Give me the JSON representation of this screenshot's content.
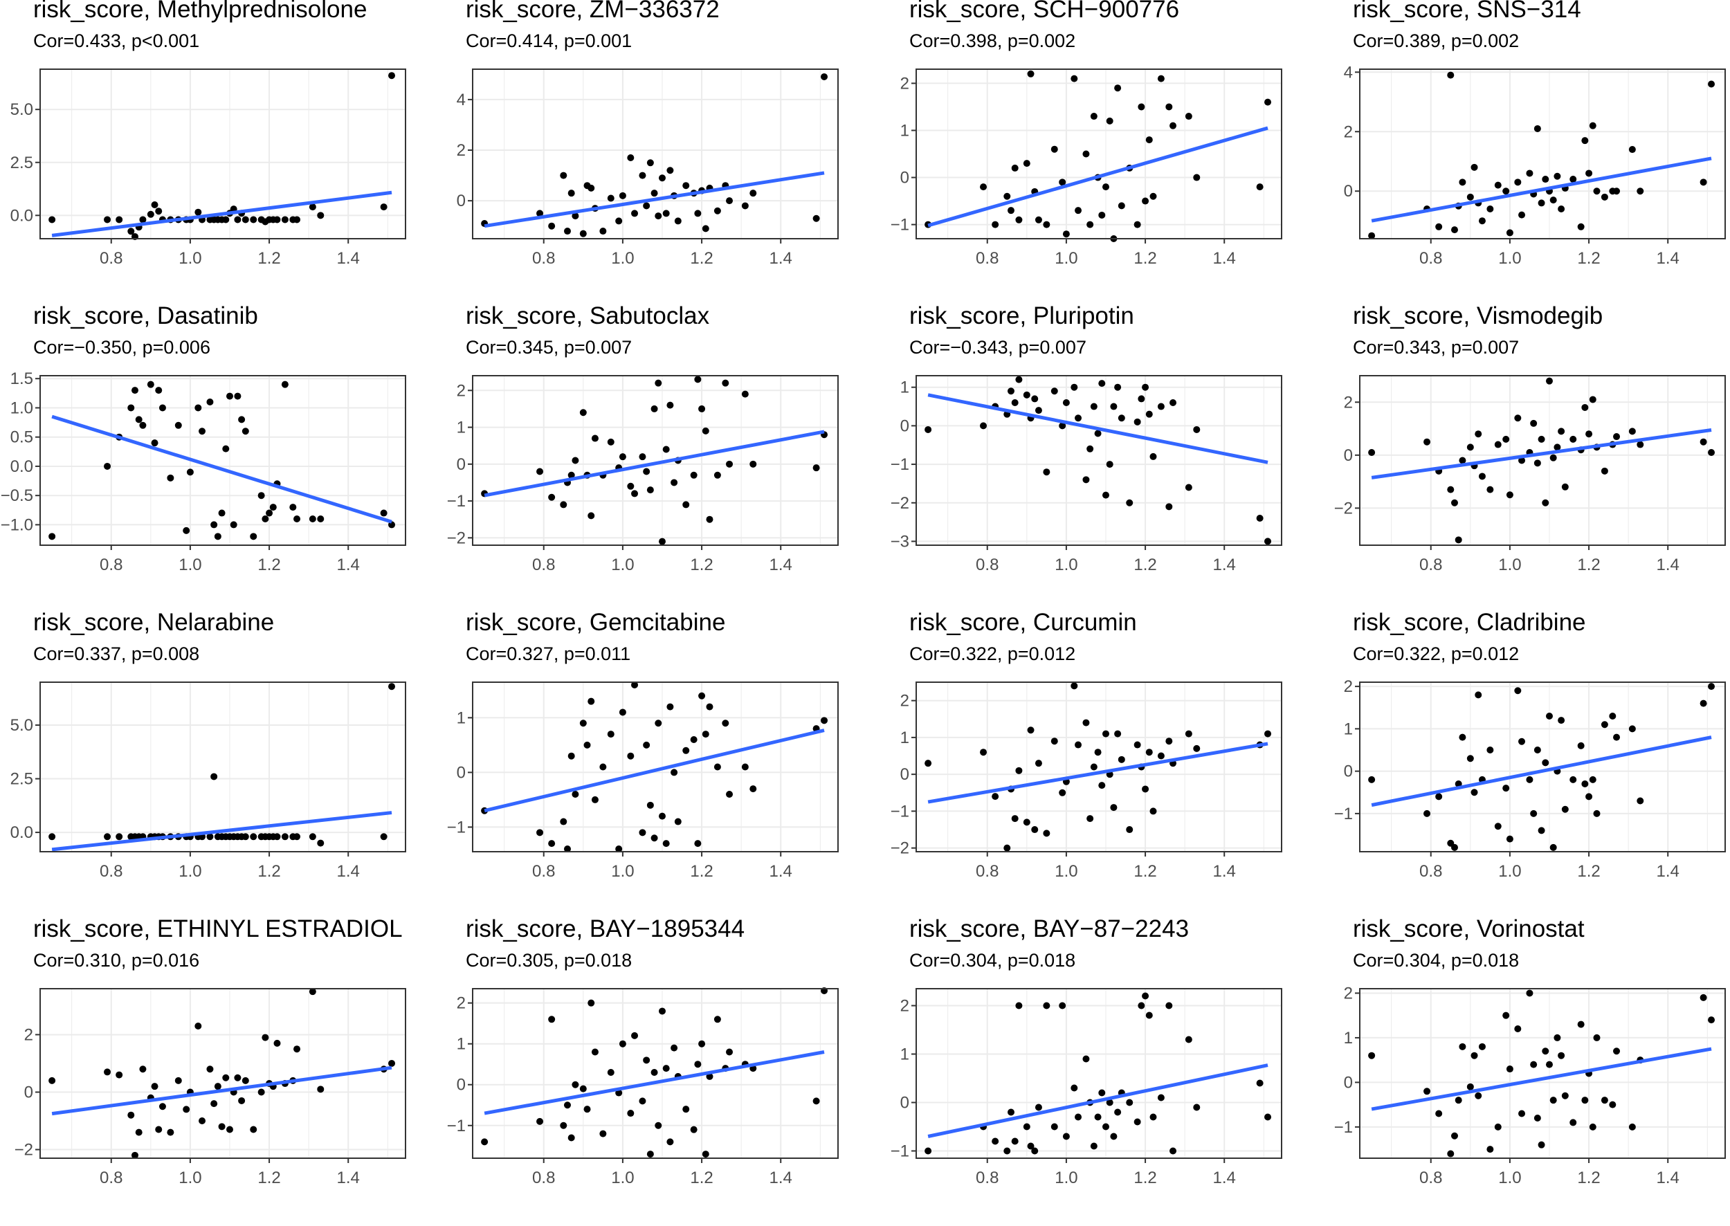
{
  "chart_data": [
    {
      "type": "scatter",
      "title": "risk_score, Methylprednisolone",
      "subtitle": "Cor=0.433, p<0.001",
      "ylim": [
        -1.1,
        6.9
      ],
      "yticks": [
        0,
        2.5,
        5
      ],
      "ytick_labels": [
        "0.0",
        "2.5",
        "5.0"
      ],
      "fit": [
        -0.95,
        1.08
      ],
      "y": [
        -0.2,
        -0.2,
        -0.2,
        -0.75,
        -1.0,
        -0.55,
        -0.2,
        0.05,
        0.5,
        0.2,
        -0.2,
        -0.2,
        -0.2,
        -0.2,
        -0.2,
        0.15,
        -0.2,
        -0.2,
        -0.2,
        -0.2,
        -0.2,
        -0.2,
        0.1,
        0.3,
        -0.2,
        0.1,
        -0.2,
        -0.2,
        -0.2,
        -0.3,
        -0.2,
        -0.2,
        -0.2,
        -0.2,
        -0.2,
        -0.2,
        0.4,
        0.0,
        0.4,
        6.6
      ]
    },
    {
      "type": "scatter",
      "title": "risk_score, ZM−336372",
      "subtitle": "Cor=0.414, p=0.001",
      "ylim": [
        -1.5,
        5.2
      ],
      "yticks": [
        0,
        2,
        4
      ],
      "ytick_labels": [
        "0",
        "2",
        "4"
      ],
      "fit": [
        -1.0,
        1.1
      ],
      "y": [
        -0.9,
        -0.5,
        -1.0,
        1.0,
        -1.2,
        0.3,
        -0.6,
        -1.3,
        0.6,
        0.5,
        -0.3,
        -1.2,
        0.1,
        -0.8,
        0.2,
        1.7,
        -0.5,
        1.0,
        -0.2,
        1.5,
        0.3,
        -0.6,
        0.9,
        -0.5,
        1.2,
        0.2,
        -0.8,
        0.6,
        0.3,
        -0.5,
        0.4,
        -1.1,
        0.5,
        -0.4,
        0.6,
        0.0,
        -0.2,
        0.3,
        -0.7,
        4.9
      ]
    },
    {
      "type": "scatter",
      "title": "risk_score, SCH−900776",
      "subtitle": "Cor=0.398, p=0.002",
      "ylim": [
        -1.3,
        2.3
      ],
      "yticks": [
        -1,
        0,
        1,
        2
      ],
      "ytick_labels": [
        "−1",
        "0",
        "1",
        "2"
      ],
      "fit": [
        -1.02,
        1.05
      ],
      "y": [
        -1.0,
        -0.2,
        -1.0,
        -0.4,
        -0.7,
        0.2,
        -0.9,
        0.3,
        2.2,
        -0.3,
        -0.9,
        -1.0,
        0.6,
        -0.1,
        -1.2,
        2.1,
        -0.7,
        0.5,
        -1.0,
        1.3,
        0.0,
        -0.8,
        -0.2,
        1.2,
        -1.3,
        1.9,
        -0.6,
        0.2,
        -1.0,
        1.5,
        -0.5,
        0.8,
        -0.4,
        2.1,
        1.5,
        1.1,
        1.3,
        0.0,
        -0.2,
        1.6
      ]
    },
    {
      "type": "scatter",
      "title": "risk_score, SNS−314",
      "subtitle": "Cor=0.389, p=0.002",
      "ylim": [
        -1.6,
        4.1
      ],
      "yticks": [
        0,
        2,
        4
      ],
      "ytick_labels": [
        "0",
        "2",
        "4"
      ],
      "fit": [
        -1.0,
        1.1
      ],
      "y": [
        -1.5,
        -0.6,
        -1.2,
        3.9,
        -1.3,
        -0.5,
        0.3,
        -0.2,
        0.8,
        -0.4,
        -1.0,
        -0.6,
        0.2,
        0.0,
        -1.4,
        0.3,
        -0.8,
        0.6,
        -0.1,
        2.1,
        -0.4,
        0.4,
        0.0,
        -0.3,
        0.5,
        -0.6,
        0.1,
        0.4,
        -1.2,
        1.7,
        0.6,
        2.2,
        0.0,
        -0.2,
        0.0,
        0.0,
        1.4,
        0.0,
        0.3,
        3.6
      ]
    },
    {
      "type": "scatter",
      "title": "risk_score, Dasatinib",
      "subtitle": "Cor=−0.350, p=0.006",
      "ylim": [
        -1.35,
        1.55
      ],
      "yticks": [
        -1,
        -0.5,
        0,
        0.5,
        1,
        1.5
      ],
      "ytick_labels": [
        "−1.0",
        "−0.5",
        "0.0",
        "0.5",
        "1.0",
        "1.5"
      ],
      "fit": [
        0.85,
        -0.95
      ],
      "y": [
        -1.2,
        0.0,
        0.5,
        1.0,
        1.3,
        0.8,
        0.7,
        1.4,
        0.4,
        1.3,
        1.0,
        -0.2,
        0.7,
        -1.1,
        -0.1,
        1.0,
        0.6,
        1.1,
        -1.0,
        -1.2,
        -0.8,
        0.3,
        1.2,
        -1.0,
        1.2,
        0.8,
        0.6,
        -1.2,
        -0.5,
        -0.9,
        -0.8,
        -0.7,
        -0.3,
        1.4,
        -0.7,
        -0.9,
        -0.9,
        -0.9,
        -0.8,
        -1.0
      ]
    },
    {
      "type": "scatter",
      "title": "risk_score, Sabutoclax",
      "subtitle": "Cor=0.345, p=0.007",
      "ylim": [
        -2.2,
        2.4
      ],
      "yticks": [
        -2,
        -1,
        0,
        1,
        2
      ],
      "ytick_labels": [
        "−2",
        "−1",
        "0",
        "1",
        "2"
      ],
      "fit": [
        -0.85,
        0.88
      ],
      "y": [
        -0.8,
        -0.2,
        -0.9,
        -1.1,
        -0.5,
        -0.3,
        0.1,
        1.4,
        -0.3,
        -1.4,
        0.7,
        -0.3,
        0.6,
        -0.1,
        0.2,
        -0.6,
        -0.8,
        0.2,
        -0.2,
        -0.7,
        1.5,
        2.2,
        -2.1,
        0.4,
        1.6,
        -0.5,
        0.1,
        -1.1,
        -0.3,
        2.3,
        1.5,
        0.9,
        -1.5,
        -0.3,
        2.2,
        0.0,
        1.9,
        0.0,
        -0.1,
        0.8
      ]
    },
    {
      "type": "scatter",
      "title": "risk_score, Pluripotin",
      "subtitle": "Cor=−0.343, p=0.007",
      "ylim": [
        -3.1,
        1.3
      ],
      "yticks": [
        -3,
        -2,
        -1,
        0,
        1
      ],
      "ytick_labels": [
        "−3",
        "−2",
        "−1",
        "0",
        "1"
      ],
      "fit": [
        0.8,
        -0.95
      ],
      "y": [
        -0.1,
        0.0,
        0.5,
        0.3,
        0.9,
        0.6,
        1.2,
        0.8,
        0.2,
        0.7,
        0.4,
        -1.2,
        0.9,
        0.0,
        0.6,
        1.0,
        0.2,
        -1.4,
        -0.6,
        0.5,
        -0.2,
        1.1,
        -1.8,
        -1.0,
        0.5,
        1.0,
        0.2,
        -2.0,
        0.1,
        0.7,
        1.0,
        0.3,
        -0.8,
        0.5,
        -2.1,
        0.6,
        -1.6,
        -0.1,
        -2.4,
        -3.0
      ]
    },
    {
      "type": "scatter",
      "title": "risk_score, Vismodegib",
      "subtitle": "Cor=0.343, p=0.007",
      "ylim": [
        -3.4,
        3.0
      ],
      "yticks": [
        -2,
        0,
        2
      ],
      "ytick_labels": [
        "−2",
        "0",
        "2"
      ],
      "fit": [
        -0.85,
        0.95
      ],
      "y": [
        0.1,
        0.5,
        -0.6,
        -1.3,
        -1.8,
        -3.2,
        -0.2,
        0.3,
        -0.4,
        0.8,
        -0.8,
        -1.3,
        0.4,
        0.6,
        -1.5,
        1.4,
        -0.2,
        0.1,
        1.2,
        -0.3,
        0.6,
        -1.8,
        2.8,
        -0.1,
        0.3,
        0.9,
        -1.2,
        0.6,
        0.2,
        1.8,
        0.8,
        2.1,
        0.3,
        -0.6,
        0.4,
        0.7,
        0.9,
        0.4,
        0.5,
        0.1
      ]
    },
    {
      "type": "scatter",
      "title": "risk_score, Nelarabine",
      "subtitle": "Cor=0.337, p=0.008",
      "ylim": [
        -0.9,
        7.0
      ],
      "yticks": [
        0,
        2.5,
        5
      ],
      "ytick_labels": [
        "0.0",
        "2.5",
        "5.0"
      ],
      "fit": [
        -0.8,
        0.92
      ],
      "y": [
        -0.2,
        -0.2,
        -0.2,
        -0.2,
        -0.2,
        -0.2,
        -0.2,
        -0.2,
        -0.2,
        -0.2,
        -0.2,
        -0.2,
        -0.2,
        -0.2,
        -0.2,
        -0.2,
        -0.2,
        -0.2,
        2.6,
        -0.2,
        -0.2,
        -0.2,
        -0.2,
        -0.2,
        -0.2,
        -0.2,
        -0.2,
        -0.2,
        -0.2,
        -0.2,
        -0.2,
        -0.2,
        -0.2,
        -0.2,
        -0.2,
        -0.2,
        -0.2,
        -0.5,
        -0.2,
        6.8
      ]
    },
    {
      "type": "scatter",
      "title": "risk_score, Gemcitabine",
      "subtitle": "Cor=0.327, p=0.011",
      "ylim": [
        -1.45,
        1.65
      ],
      "yticks": [
        -1,
        0,
        1
      ],
      "ytick_labels": [
        "−1",
        "0",
        "1"
      ],
      "fit": [
        -0.7,
        0.77
      ],
      "y": [
        -0.7,
        -1.1,
        -1.3,
        -0.9,
        -1.4,
        0.3,
        -0.4,
        0.9,
        0.5,
        1.3,
        -0.5,
        0.1,
        0.7,
        -1.4,
        1.1,
        0.3,
        1.6,
        -1.1,
        0.5,
        -0.6,
        -1.2,
        0.9,
        -0.8,
        -1.3,
        1.2,
        0.0,
        -0.9,
        0.4,
        0.6,
        -1.3,
        1.4,
        0.7,
        1.2,
        0.1,
        0.9,
        -0.4,
        0.1,
        -0.3,
        0.8,
        0.95
      ]
    },
    {
      "type": "scatter",
      "title": "risk_score, Curcumin",
      "subtitle": "Cor=0.322, p=0.012",
      "ylim": [
        -2.1,
        2.5
      ],
      "yticks": [
        -2,
        -1,
        0,
        1,
        2
      ],
      "ytick_labels": [
        "−2",
        "−1",
        "0",
        "1",
        "2"
      ],
      "fit": [
        -0.75,
        0.83
      ],
      "y": [
        0.3,
        0.6,
        -0.6,
        -2.0,
        -0.4,
        -1.2,
        0.1,
        -1.3,
        1.2,
        -1.5,
        0.3,
        -1.6,
        0.9,
        -0.5,
        -0.2,
        2.4,
        0.8,
        1.4,
        -1.2,
        0.2,
        0.6,
        -0.3,
        1.1,
        0.0,
        -0.9,
        1.1,
        0.4,
        -1.5,
        0.8,
        0.2,
        -0.4,
        0.6,
        -1.0,
        0.5,
        0.9,
        0.3,
        1.1,
        0.7,
        0.8,
        1.1
      ]
    },
    {
      "type": "scatter",
      "title": "risk_score, Cladribine",
      "subtitle": "Cor=0.322, p=0.012",
      "ylim": [
        -1.9,
        2.1
      ],
      "yticks": [
        -1,
        0,
        1,
        2
      ],
      "ytick_labels": [
        "−1",
        "0",
        "1",
        "2"
      ],
      "fit": [
        -0.8,
        0.8
      ],
      "y": [
        -0.2,
        -1.0,
        -0.6,
        -1.7,
        -1.8,
        -0.3,
        0.8,
        0.3,
        -0.5,
        1.8,
        -0.2,
        0.5,
        -1.3,
        -0.4,
        -1.6,
        1.9,
        0.7,
        -0.2,
        -1.0,
        0.5,
        -1.4,
        0.2,
        1.3,
        -1.8,
        0.0,
        1.2,
        -0.9,
        -0.2,
        0.6,
        -0.3,
        -0.6,
        -0.2,
        -1.0,
        1.1,
        1.3,
        0.8,
        1.0,
        -0.7,
        1.6,
        2.0
      ]
    },
    {
      "type": "scatter",
      "title": "risk_score, ETHINYL ESTRADIOL",
      "subtitle": "Cor=0.310, p=0.016",
      "ylim": [
        -2.3,
        3.6
      ],
      "yticks": [
        -2,
        0,
        2
      ],
      "ytick_labels": [
        "−2",
        "0",
        "2"
      ],
      "fit": [
        -0.75,
        0.85
      ],
      "y": [
        0.4,
        0.7,
        0.6,
        -0.8,
        -2.2,
        -1.4,
        0.8,
        -0.2,
        0.2,
        -1.3,
        -0.5,
        -1.4,
        0.4,
        -0.6,
        0.0,
        2.3,
        -1.0,
        0.8,
        -0.4,
        0.2,
        -1.2,
        0.5,
        -1.3,
        0.0,
        0.5,
        -0.3,
        0.4,
        -1.3,
        0.0,
        1.9,
        0.3,
        0.2,
        1.7,
        0.3,
        0.4,
        1.5,
        3.5,
        0.1,
        0.8,
        1.0
      ]
    },
    {
      "type": "scatter",
      "title": "risk_score, BAY−1895344",
      "subtitle": "Cor=0.305, p=0.018",
      "ylim": [
        -1.8,
        2.35
      ],
      "yticks": [
        -1,
        0,
        1,
        2
      ],
      "ytick_labels": [
        "−1",
        "0",
        "1",
        "2"
      ],
      "fit": [
        -0.7,
        0.8
      ],
      "y": [
        -1.4,
        -0.9,
        1.6,
        -1.0,
        -0.5,
        -1.3,
        0.0,
        -0.1,
        -0.6,
        2.0,
        0.8,
        -1.2,
        0.3,
        -0.2,
        1.0,
        -0.7,
        1.2,
        -0.4,
        0.6,
        -1.7,
        0.3,
        -1.0,
        1.8,
        0.4,
        -1.4,
        0.9,
        0.2,
        -0.6,
        -1.1,
        0.5,
        1.0,
        -1.7,
        0.2,
        1.6,
        0.4,
        0.8,
        0.5,
        0.4,
        -0.4,
        2.3
      ]
    },
    {
      "type": "scatter",
      "title": "risk_score, BAY−87−2243",
      "subtitle": "Cor=0.304, p=0.018",
      "ylim": [
        -1.15,
        2.35
      ],
      "yticks": [
        -1,
        0,
        1,
        2
      ],
      "ytick_labels": [
        "−1",
        "0",
        "1",
        "2"
      ],
      "fit": [
        -0.7,
        0.77
      ],
      "y": [
        -1.0,
        -0.5,
        -0.8,
        -1.0,
        -0.2,
        -0.8,
        2.0,
        -0.5,
        -0.9,
        -1.0,
        -0.1,
        2.0,
        -0.5,
        2.0,
        -0.7,
        0.3,
        -0.3,
        0.9,
        0.0,
        -0.9,
        -0.3,
        0.2,
        -0.5,
        0.0,
        -0.7,
        -0.2,
        0.2,
        0.0,
        -0.4,
        2.0,
        2.2,
        1.8,
        -0.3,
        0.1,
        2.0,
        -1.0,
        1.3,
        -0.1,
        0.4,
        -0.3
      ]
    },
    {
      "type": "scatter",
      "title": "risk_score, Vorinostat",
      "subtitle": "Cor=0.304, p=0.018",
      "ylim": [
        -1.7,
        2.1
      ],
      "yticks": [
        -1,
        0,
        1,
        2
      ],
      "ytick_labels": [
        "−1",
        "0",
        "1",
        "2"
      ],
      "fit": [
        -0.6,
        0.75
      ],
      "y": [
        0.6,
        -0.2,
        -0.7,
        -1.6,
        -1.2,
        -0.4,
        0.8,
        -0.1,
        0.6,
        -0.3,
        0.8,
        -1.5,
        -1.0,
        1.5,
        0.3,
        1.2,
        -0.7,
        2.0,
        0.4,
        -0.8,
        -1.4,
        0.7,
        0.4,
        -0.4,
        1.0,
        0.6,
        -0.3,
        -0.9,
        1.3,
        -0.4,
        0.2,
        -1.0,
        1.0,
        -0.4,
        -0.5,
        0.7,
        -1.0,
        0.5,
        1.9,
        1.4
      ]
    }
  ],
  "shared": {
    "x": [
      0.65,
      0.79,
      0.82,
      0.85,
      0.86,
      0.87,
      0.88,
      0.9,
      0.91,
      0.92,
      0.93,
      0.95,
      0.97,
      0.99,
      1.0,
      1.02,
      1.03,
      1.05,
      1.06,
      1.07,
      1.08,
      1.09,
      1.1,
      1.11,
      1.12,
      1.13,
      1.14,
      1.16,
      1.18,
      1.19,
      1.2,
      1.21,
      1.22,
      1.24,
      1.26,
      1.27,
      1.31,
      1.33,
      1.49,
      1.51
    ],
    "fit_x": [
      0.65,
      1.51
    ],
    "xlim": [
      0.62,
      1.545
    ],
    "xticks": [
      0.8,
      1.0,
      1.2,
      1.4
    ],
    "xtick_labels": [
      "0.8",
      "1.0",
      "1.2",
      "1.4"
    ],
    "point_color": "#000000",
    "line_color": "#3366FF",
    "grid_color": "#EBEBEB"
  }
}
